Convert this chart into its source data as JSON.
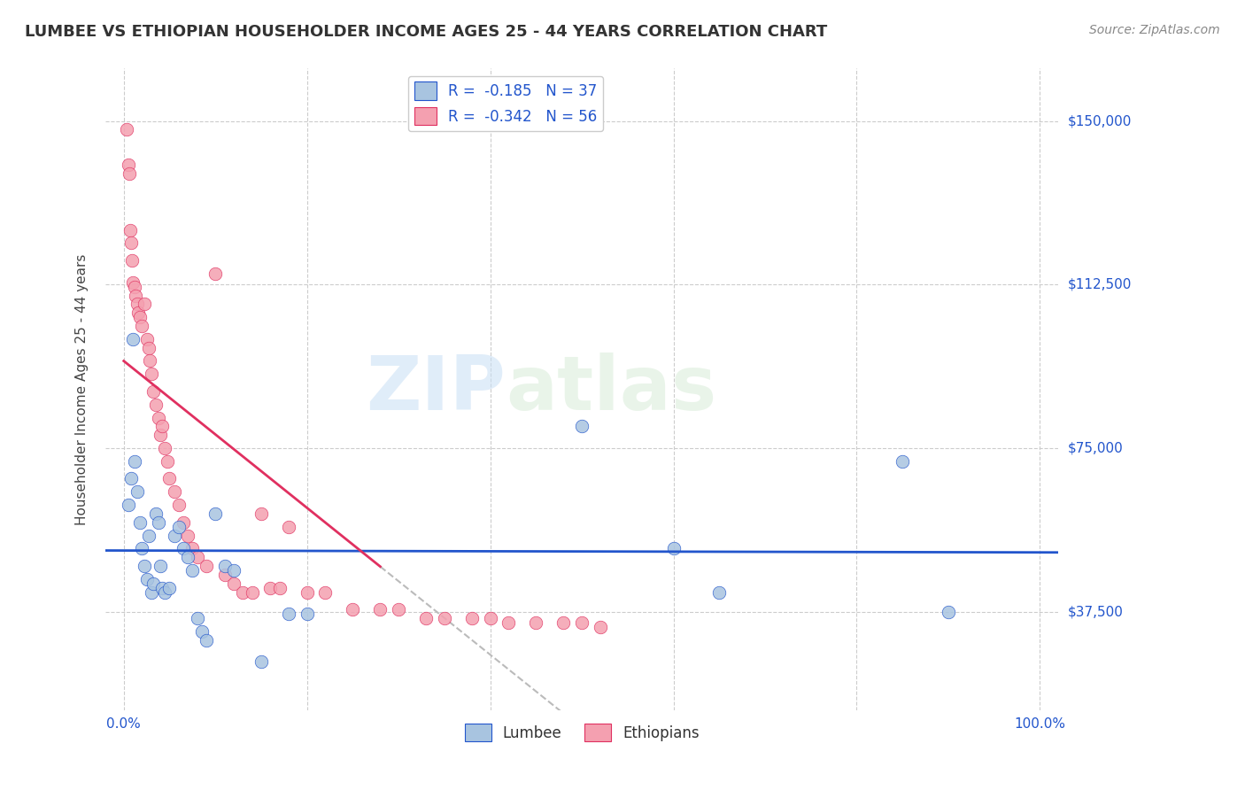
{
  "title": "LUMBEE VS ETHIOPIAN HOUSEHOLDER INCOME AGES 25 - 44 YEARS CORRELATION CHART",
  "source": "Source: ZipAtlas.com",
  "ylabel": "Householder Income Ages 25 - 44 years",
  "ytick_labels": [
    "$37,500",
    "$75,000",
    "$112,500",
    "$150,000"
  ],
  "ytick_values": [
    37500,
    75000,
    112500,
    150000
  ],
  "ylim": [
    15000,
    162000
  ],
  "xlim": [
    -0.02,
    1.02
  ],
  "lumbee_R": "-0.185",
  "lumbee_N": "37",
  "ethiopian_R": "-0.342",
  "ethiopian_N": "56",
  "watermark_zip": "ZIP",
  "watermark_atlas": "atlas",
  "lumbee_color": "#a8c4e0",
  "ethiopian_color": "#f4a0b0",
  "lumbee_line_color": "#2255cc",
  "ethiopian_line_color": "#e03060",
  "gray_dash_color": "#bbbbbb",
  "lumbee_scatter_x": [
    0.005,
    0.008,
    0.01,
    0.012,
    0.015,
    0.018,
    0.02,
    0.022,
    0.025,
    0.027,
    0.03,
    0.032,
    0.035,
    0.038,
    0.04,
    0.042,
    0.045,
    0.05,
    0.055,
    0.06,
    0.065,
    0.07,
    0.075,
    0.08,
    0.085,
    0.09,
    0.1,
    0.11,
    0.12,
    0.15,
    0.18,
    0.2,
    0.5,
    0.6,
    0.65,
    0.85,
    0.9
  ],
  "lumbee_scatter_y": [
    62000,
    68000,
    100000,
    72000,
    65000,
    58000,
    52000,
    48000,
    45000,
    55000,
    42000,
    44000,
    60000,
    58000,
    48000,
    43000,
    42000,
    43000,
    55000,
    57000,
    52000,
    50000,
    47000,
    36000,
    33000,
    31000,
    60000,
    48000,
    47000,
    26000,
    37000,
    37000,
    80000,
    52000,
    42000,
    72000,
    37500
  ],
  "ethiopian_scatter_x": [
    0.003,
    0.005,
    0.006,
    0.007,
    0.008,
    0.009,
    0.01,
    0.012,
    0.013,
    0.015,
    0.016,
    0.018,
    0.02,
    0.022,
    0.025,
    0.027,
    0.028,
    0.03,
    0.032,
    0.035,
    0.038,
    0.04,
    0.042,
    0.045,
    0.048,
    0.05,
    0.055,
    0.06,
    0.065,
    0.07,
    0.075,
    0.08,
    0.09,
    0.1,
    0.11,
    0.12,
    0.13,
    0.14,
    0.15,
    0.16,
    0.17,
    0.18,
    0.2,
    0.22,
    0.25,
    0.28,
    0.3,
    0.33,
    0.35,
    0.38,
    0.4,
    0.42,
    0.45,
    0.48,
    0.5,
    0.52
  ],
  "ethiopian_scatter_y": [
    148000,
    140000,
    138000,
    125000,
    122000,
    118000,
    113000,
    112000,
    110000,
    108000,
    106000,
    105000,
    103000,
    108000,
    100000,
    98000,
    95000,
    92000,
    88000,
    85000,
    82000,
    78000,
    80000,
    75000,
    72000,
    68000,
    65000,
    62000,
    58000,
    55000,
    52000,
    50000,
    48000,
    115000,
    46000,
    44000,
    42000,
    42000,
    60000,
    43000,
    43000,
    57000,
    42000,
    42000,
    38000,
    38000,
    38000,
    36000,
    36000,
    36000,
    36000,
    35000,
    35000,
    35000,
    35000,
    34000
  ]
}
